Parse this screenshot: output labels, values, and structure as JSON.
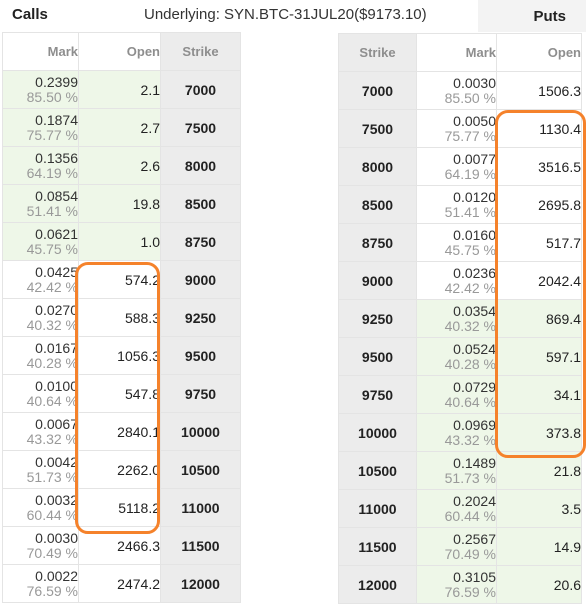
{
  "header": {
    "calls_label": "Calls",
    "underlying": "Underlying: SYN.BTC-31JUL20($9173.10)",
    "puts_label": "Puts"
  },
  "calls": {
    "columns": [
      "Mark",
      "Open",
      "Strike"
    ],
    "rows": [
      {
        "mark": "0.2399",
        "iv": "85.50 %",
        "open": "2.1",
        "strike": "7000"
      },
      {
        "mark": "0.1874",
        "iv": "75.77 %",
        "open": "2.7",
        "strike": "7500"
      },
      {
        "mark": "0.1356",
        "iv": "64.19 %",
        "open": "2.6",
        "strike": "8000"
      },
      {
        "mark": "0.0854",
        "iv": "51.41 %",
        "open": "19.8",
        "strike": "8500"
      },
      {
        "mark": "0.0621",
        "iv": "45.75 %",
        "open": "1.0",
        "strike": "8750"
      },
      {
        "mark": "0.0425",
        "iv": "42.42 %",
        "open": "574.2",
        "strike": "9000"
      },
      {
        "mark": "0.0270",
        "iv": "40.32 %",
        "open": "588.3",
        "strike": "9250"
      },
      {
        "mark": "0.0167",
        "iv": "40.28 %",
        "open": "1056.3",
        "strike": "9500"
      },
      {
        "mark": "0.0100",
        "iv": "40.64 %",
        "open": "547.8",
        "strike": "9750"
      },
      {
        "mark": "0.0067",
        "iv": "43.32 %",
        "open": "2840.1",
        "strike": "10000"
      },
      {
        "mark": "0.0042",
        "iv": "51.73 %",
        "open": "2262.0",
        "strike": "10500"
      },
      {
        "mark": "0.0032",
        "iv": "60.44 %",
        "open": "5118.2",
        "strike": "11000"
      },
      {
        "mark": "0.0030",
        "iv": "70.49 %",
        "open": "2466.3",
        "strike": "11500"
      },
      {
        "mark": "0.0022",
        "iv": "76.59 %",
        "open": "2474.2",
        "strike": "12000"
      }
    ]
  },
  "puts": {
    "columns": [
      "Strike",
      "Mark",
      "Open"
    ],
    "rows": [
      {
        "strike": "7000",
        "mark": "0.0030",
        "iv": "85.50 %",
        "open": "1506.3"
      },
      {
        "strike": "7500",
        "mark": "0.0050",
        "iv": "75.77 %",
        "open": "1130.4"
      },
      {
        "strike": "8000",
        "mark": "0.0077",
        "iv": "64.19 %",
        "open": "3516.5"
      },
      {
        "strike": "8500",
        "mark": "0.0120",
        "iv": "51.41 %",
        "open": "2695.8"
      },
      {
        "strike": "8750",
        "mark": "0.0160",
        "iv": "45.75 %",
        "open": "517.7"
      },
      {
        "strike": "9000",
        "mark": "0.0236",
        "iv": "42.42 %",
        "open": "2042.4"
      },
      {
        "strike": "9250",
        "mark": "0.0354",
        "iv": "40.32 %",
        "open": "869.4"
      },
      {
        "strike": "9500",
        "mark": "0.0524",
        "iv": "40.28 %",
        "open": "597.1"
      },
      {
        "strike": "9750",
        "mark": "0.0729",
        "iv": "40.64 %",
        "open": "34.1"
      },
      {
        "strike": "10000",
        "mark": "0.0969",
        "iv": "43.32 %",
        "open": "373.8"
      },
      {
        "strike": "10500",
        "mark": "0.1489",
        "iv": "51.73 %",
        "open": "21.8"
      },
      {
        "strike": "11000",
        "mark": "0.2024",
        "iv": "60.44 %",
        "open": "3.5"
      },
      {
        "strike": "11500",
        "mark": "0.2567",
        "iv": "70.49 %",
        "open": "14.9"
      },
      {
        "strike": "12000",
        "mark": "0.3105",
        "iv": "76.59 %",
        "open": "20.6"
      }
    ]
  },
  "colors": {
    "in_the_money_bg": "#eef7e8",
    "strike_bg": "#ececec",
    "highlight": "#f5822b"
  }
}
